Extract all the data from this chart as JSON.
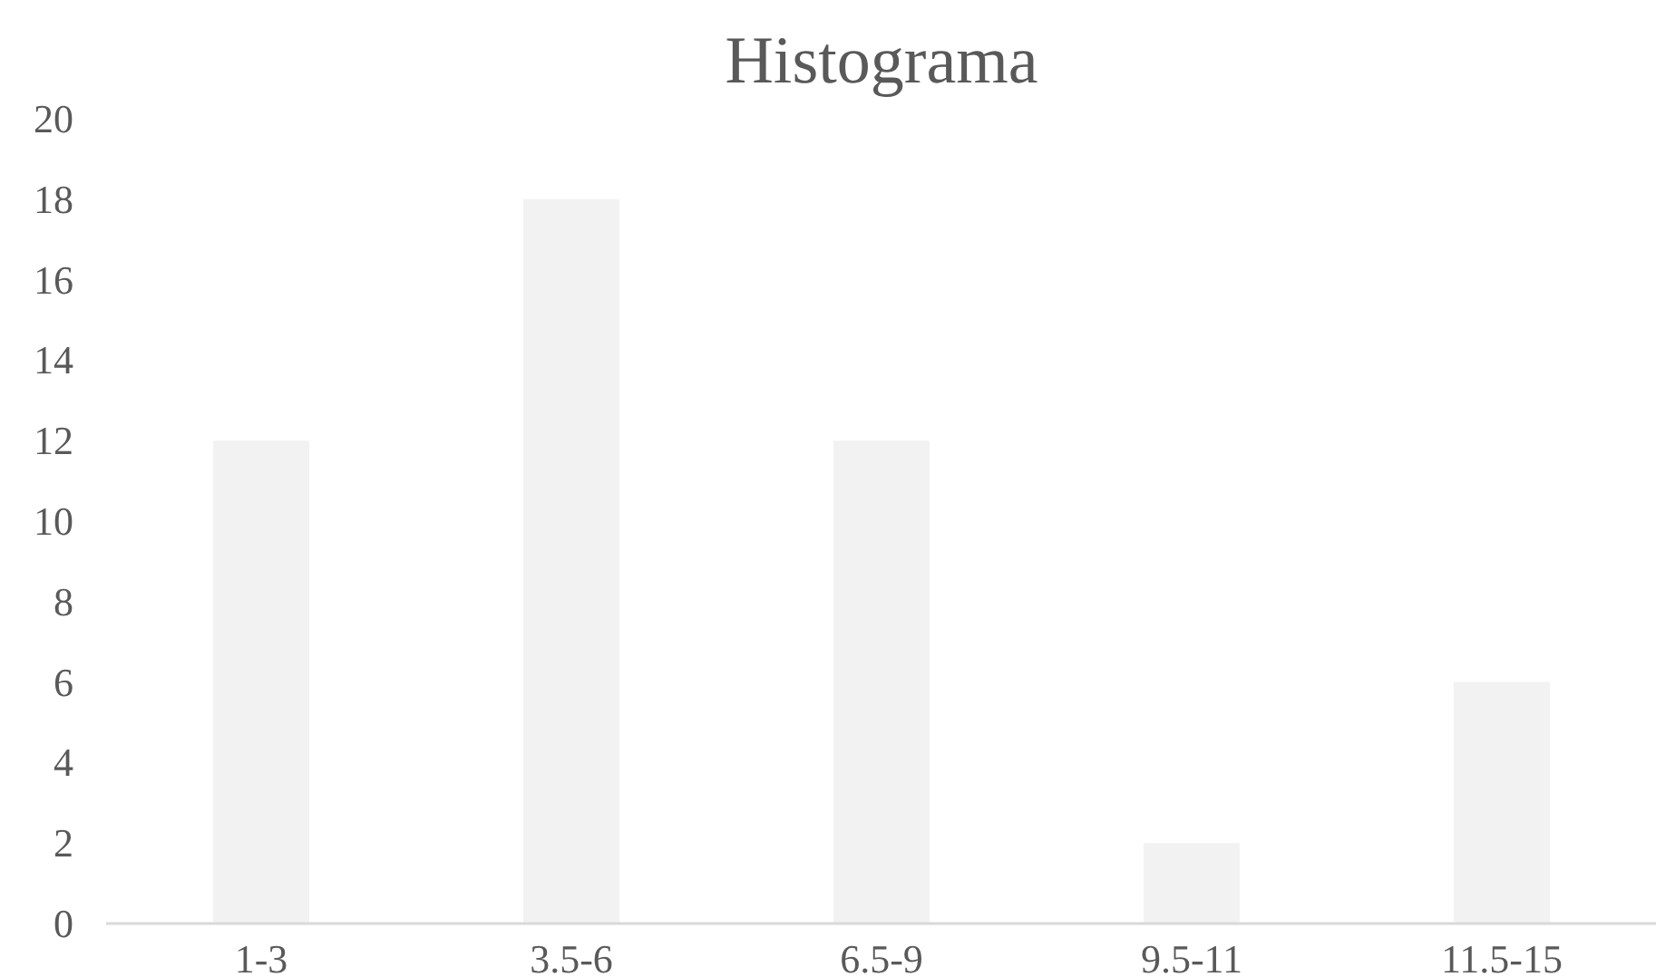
{
  "chart_data": {
    "type": "bar",
    "title": "Histograma",
    "categories": [
      "1-3",
      "3.5-6",
      "6.5-9",
      "9.5-11",
      "11.5-15"
    ],
    "values": [
      12,
      18,
      12,
      2,
      6
    ],
    "color": "#f2f2f2",
    "ylim": [
      0,
      20
    ],
    "yticks": [
      0,
      2,
      4,
      6,
      8,
      10,
      12,
      14,
      16,
      18,
      20
    ]
  }
}
